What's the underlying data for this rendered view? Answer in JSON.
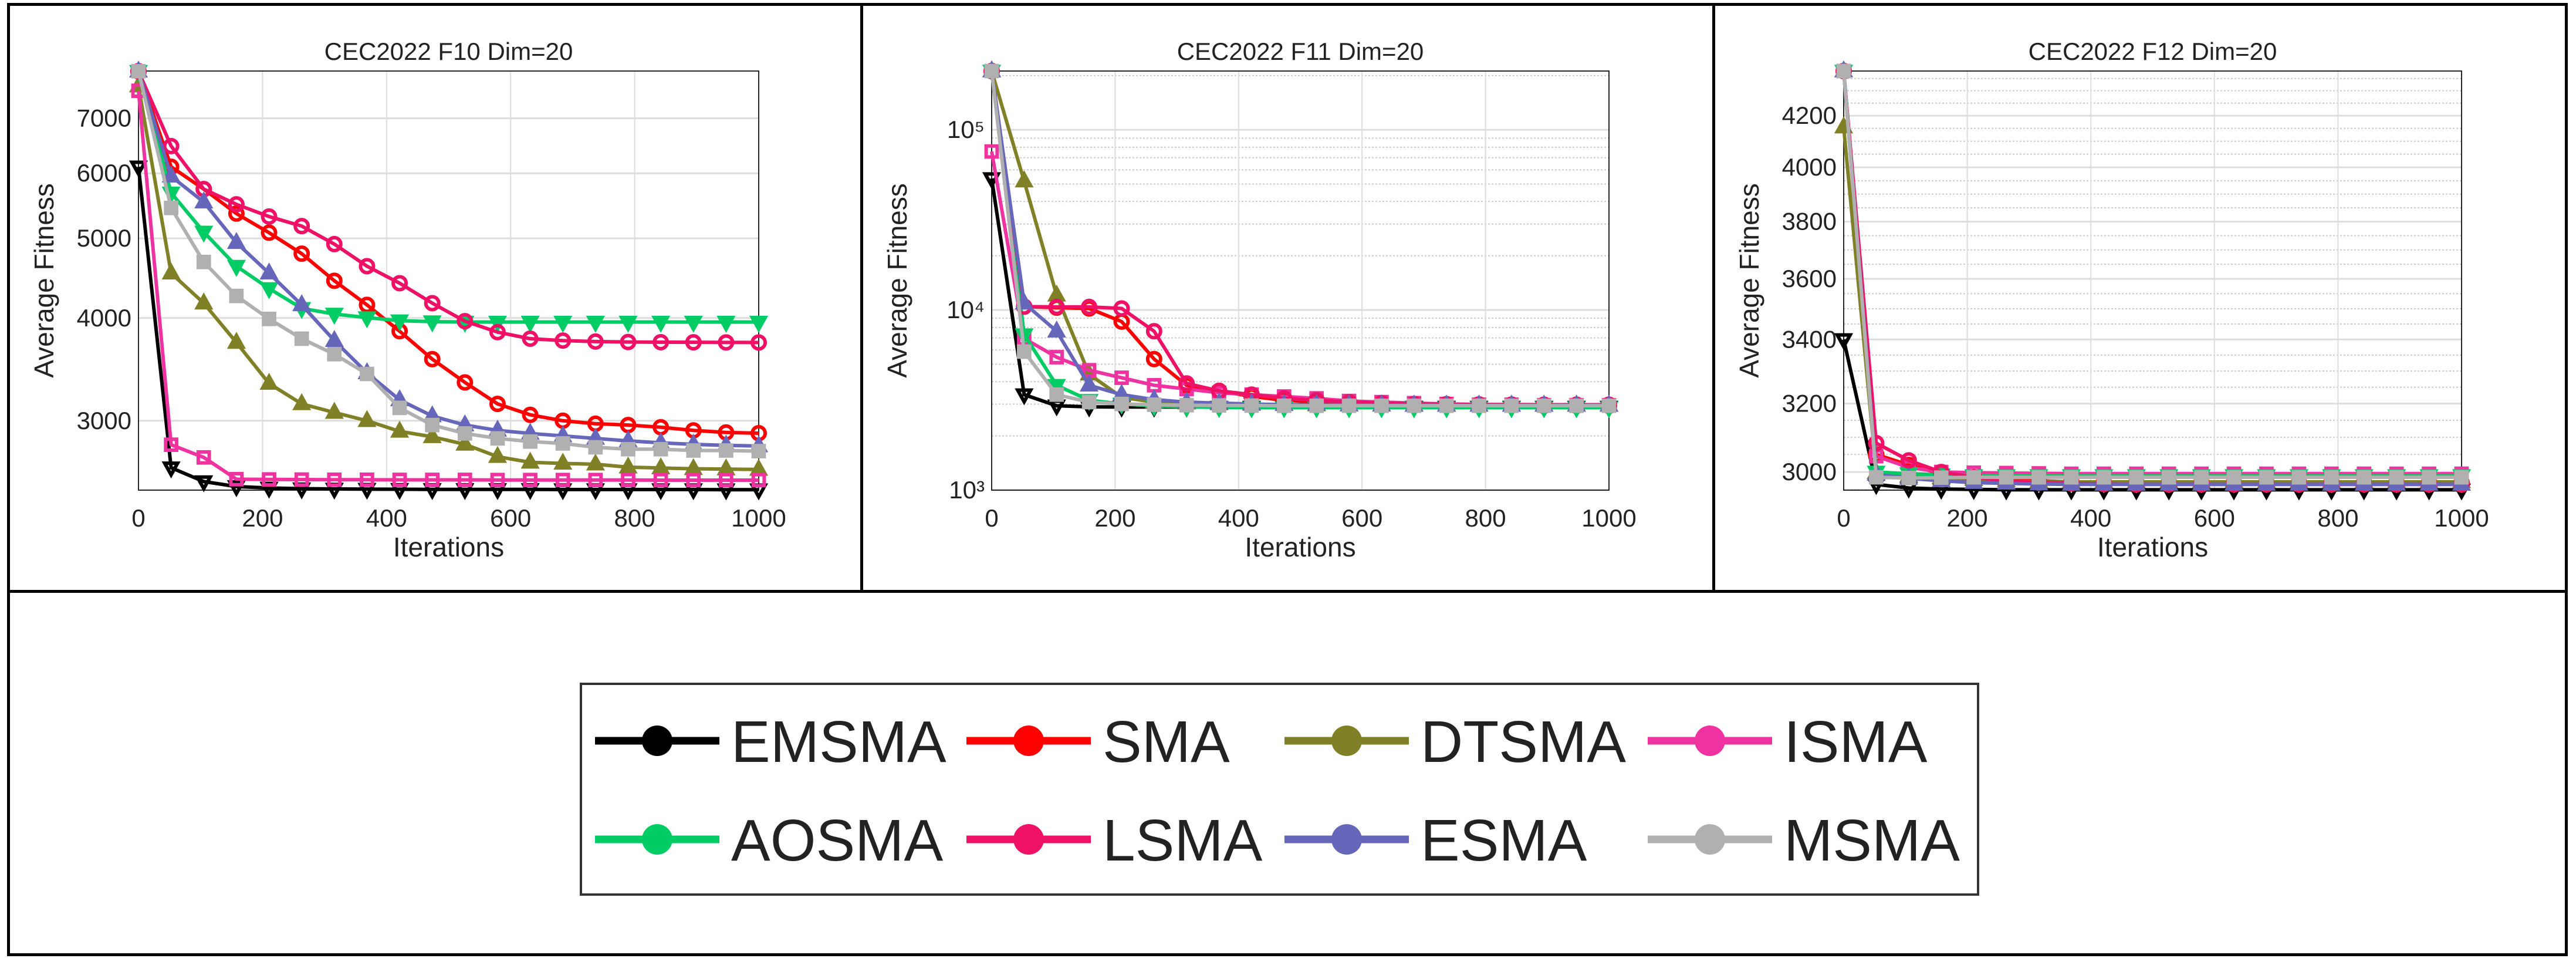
{
  "legend": [
    {
      "name": "EMSMA",
      "color": "#000000",
      "marker": "down-triangle",
      "filled": false
    },
    {
      "name": "SMA",
      "color": "#ff0000",
      "marker": "circle",
      "filled": false
    },
    {
      "name": "DTSMA",
      "color": "#808026",
      "marker": "up-triangle",
      "filled": true
    },
    {
      "name": "ISMA",
      "color": "#ee33a0",
      "marker": "square",
      "filled": false
    },
    {
      "name": "AOSMA",
      "color": "#00cc66",
      "marker": "down-triangle",
      "filled": true
    },
    {
      "name": "LSMA",
      "color": "#ee1166",
      "marker": "circle",
      "filled": false
    },
    {
      "name": "ESMA",
      "color": "#6666bb",
      "marker": "up-triangle",
      "filled": true
    },
    {
      "name": "MSMA",
      "color": "#b0b0b0",
      "marker": "square",
      "filled": true
    }
  ],
  "chart_data": [
    {
      "type": "line",
      "title": "CEC2022 F10 Dim=20",
      "xlabel": "Iterations",
      "ylabel": "Average Fitness",
      "xlim": [
        0,
        1000
      ],
      "ylim": [
        2470,
        7990
      ],
      "yscale": "log",
      "grid": true,
      "xticks": [
        0,
        200,
        400,
        600,
        800,
        1000
      ],
      "xtick_labels": [
        "0",
        "200",
        "400",
        "600",
        "800",
        "1000"
      ],
      "yticks": [
        3000,
        4000,
        5000,
        6000,
        7000
      ],
      "ytick_labels": [
        "3000",
        "4000",
        "5000",
        "6000",
        "7000"
      ],
      "series": [
        {
          "name": "EMSMA",
          "values": [
            6110,
            2630,
            2530,
            2495,
            2485,
            2480,
            2478,
            2477,
            2476,
            2475,
            2475,
            2475,
            2475,
            2474,
            2474,
            2474,
            2474,
            2474,
            2473,
            2473
          ]
        },
        {
          "name": "SMA",
          "values": [
            7985,
            6110,
            5740,
            5360,
            5080,
            4790,
            4440,
            4150,
            3855,
            3565,
            3340,
            3145,
            3050,
            3000,
            2975,
            2964,
            2946,
            2920,
            2903,
            2897
          ]
        },
        {
          "name": "DTSMA",
          "values": [
            7660,
            4535,
            4170,
            3735,
            3330,
            3145,
            3070,
            3000,
            2912,
            2868,
            2808,
            2713,
            2670,
            2662,
            2656,
            2634,
            2628,
            2622,
            2620,
            2617
          ]
        },
        {
          "name": "ISMA",
          "values": [
            7560,
            2805,
            2707,
            2547,
            2545,
            2544,
            2543,
            2543,
            2542,
            2542,
            2542,
            2541,
            2541,
            2541,
            2541,
            2541,
            2540,
            2540,
            2540,
            2540
          ]
        },
        {
          "name": "AOSMA",
          "values": [
            7985,
            5680,
            5090,
            4625,
            4345,
            4110,
            4045,
            4005,
            3970,
            3960,
            3955,
            3955,
            3955,
            3955,
            3955,
            3955,
            3955,
            3955,
            3955,
            3955
          ]
        },
        {
          "name": "LSMA",
          "values": [
            7985,
            6475,
            5740,
            5500,
            5315,
            5175,
            4920,
            4625,
            4410,
            4170,
            3965,
            3845,
            3775,
            3755,
            3745,
            3740,
            3738,
            3737,
            3736,
            3735
          ]
        },
        {
          "name": "ESMA",
          "values": [
            7985,
            5950,
            5535,
            4940,
            4535,
            4150,
            3755,
            3430,
            3180,
            3040,
            2964,
            2920,
            2895,
            2875,
            2855,
            2835,
            2820,
            2808,
            2800,
            2795
          ]
        },
        {
          "name": "MSMA",
          "values": [
            7985,
            5445,
            4680,
            4255,
            3990,
            3775,
            3615,
            3420,
            3110,
            2964,
            2895,
            2855,
            2830,
            2815,
            2785,
            2770,
            2770,
            2760,
            2760,
            2755
          ]
        }
      ]
    },
    {
      "type": "line",
      "title": "CEC2022 F11 Dim=20",
      "xlabel": "Iterations",
      "ylabel": "Average Fitness",
      "xlim": [
        0,
        1000
      ],
      "ylim": [
        1000,
        212000
      ],
      "yscale": "log",
      "grid": true,
      "xticks": [
        0,
        200,
        400,
        600,
        800,
        1000
      ],
      "xtick_labels": [
        "0",
        "200",
        "400",
        "600",
        "800",
        "1000"
      ],
      "yticks": [
        1000,
        10000,
        100000
      ],
      "ytick_labels": [
        "10³",
        "10⁴",
        "10⁵"
      ],
      "series": [
        {
          "name": "EMSMA",
          "values": [
            53700,
            3390,
            2940,
            2900,
            2894,
            2894,
            2894,
            2893,
            2893,
            2893,
            2893,
            2893,
            2893,
            2893,
            2893,
            2893,
            2893,
            2893,
            2893,
            2893
          ]
        },
        {
          "name": "SMA",
          "values": [
            212000,
            10440,
            10300,
            10200,
            8620,
            5340,
            3820,
            3556,
            3310,
            3155,
            3080,
            3040,
            3008,
            2980,
            2980,
            2960,
            2960,
            2937,
            2937,
            2937
          ]
        },
        {
          "name": "DTSMA",
          "values": [
            212000,
            51900,
            12060,
            4400,
            3275,
            3080,
            3040,
            3008,
            2990,
            2980,
            2970,
            2960,
            2955,
            2950,
            2950,
            2950,
            2950,
            2950,
            2950,
            2950
          ]
        },
        {
          "name": "ISMA",
          "values": [
            75800,
            6950,
            5470,
            4630,
            4205,
            3820,
            3640,
            3470,
            3390,
            3310,
            3230,
            3125,
            3080,
            3040,
            3008,
            2980,
            2980,
            2960,
            2960,
            2960
          ]
        },
        {
          "name": "AOSMA",
          "values": [
            212000,
            7300,
            3820,
            3155,
            3008,
            2937,
            2900,
            2880,
            2870,
            2870,
            2870,
            2870,
            2870,
            2870,
            2870,
            2870,
            2870,
            2870,
            2870,
            2870
          ]
        },
        {
          "name": "LSMA",
          "values": [
            212000,
            10440,
            10400,
            10400,
            10200,
            7620,
            3910,
            3556,
            3390,
            3230,
            3155,
            3080,
            3040,
            3008,
            3000,
            2990,
            2985,
            2980,
            2980,
            2980
          ]
        },
        {
          "name": "ESMA",
          "values": [
            212000,
            10900,
            7620,
            3820,
            3390,
            3180,
            3080,
            3040,
            3008,
            2980,
            2980,
            2970,
            2965,
            2960,
            2960,
            2960,
            2960,
            2960,
            2960,
            2960
          ]
        },
        {
          "name": "MSMA",
          "values": [
            212000,
            5870,
            3390,
            3080,
            3008,
            2980,
            2960,
            2950,
            2945,
            2940,
            2940,
            2940,
            2940,
            2940,
            2940,
            2940,
            2940,
            2940,
            2940,
            2940
          ]
        }
      ]
    },
    {
      "type": "line",
      "title": "CEC2022 F12 Dim=20",
      "xlabel": "Iterations",
      "ylabel": "Average Fitness",
      "xlim": [
        0,
        1000
      ],
      "ylim": [
        2949,
        4381
      ],
      "yscale": "log",
      "grid": true,
      "xticks": [
        0,
        200,
        400,
        600,
        800,
        1000
      ],
      "xtick_labels": [
        "0",
        "200",
        "400",
        "600",
        "800",
        "1000"
      ],
      "yticks": [
        3000,
        3200,
        3400,
        3600,
        3800,
        4000,
        4200
      ],
      "ytick_labels": [
        "3000",
        "3200",
        "3400",
        "3600",
        "3800",
        "4000",
        "4200"
      ],
      "series": [
        {
          "name": "EMSMA",
          "values": [
            3400,
            2965,
            2955,
            2952,
            2951,
            2950,
            2950,
            2950,
            2950,
            2950,
            2950,
            2950,
            2950,
            2950,
            2950,
            2950,
            2950,
            2950,
            2950,
            2950
          ]
        },
        {
          "name": "SMA",
          "values": [
            4381,
            3050,
            3020,
            2995,
            2985,
            2980,
            2975,
            2972,
            2970,
            2970,
            2970,
            2970,
            2970,
            2970,
            2970,
            2970,
            2970,
            2970,
            2970,
            2970
          ]
        },
        {
          "name": "DTSMA",
          "values": [
            4155,
            2998,
            2988,
            2982,
            2978,
            2975,
            2973,
            2972,
            2972,
            2972,
            2972,
            2972,
            2972,
            2972,
            2972,
            2972,
            2972,
            2972,
            2972,
            2972
          ]
        },
        {
          "name": "ISMA",
          "values": [
            4381,
            3045,
            3013,
            3000,
            2998,
            2997,
            2996,
            2995,
            2995,
            2995,
            2995,
            2995,
            2995,
            2995,
            2995,
            2995,
            2995,
            2995,
            2995,
            2995
          ]
        },
        {
          "name": "AOSMA",
          "values": [
            4381,
            3000,
            2995,
            2992,
            2990,
            2990,
            2990,
            2990,
            2990,
            2990,
            2990,
            2990,
            2990,
            2990,
            2990,
            2990,
            2990,
            2990,
            2990,
            2990
          ]
        },
        {
          "name": "LSMA",
          "values": [
            4381,
            3083,
            3033,
            3000,
            2985,
            2975,
            2970,
            2968,
            2966,
            2965,
            2965,
            2965,
            2965,
            2965,
            2965,
            2965,
            2965,
            2965,
            2965,
            2965
          ]
        },
        {
          "name": "ESMA",
          "values": [
            4381,
            2993,
            2982,
            2975,
            2970,
            2968,
            2966,
            2965,
            2965,
            2965,
            2965,
            2965,
            2965,
            2965,
            2965,
            2965,
            2965,
            2965,
            2965,
            2965
          ]
        },
        {
          "name": "MSMA",
          "values": [
            4381,
            2985,
            2983,
            2984,
            2985,
            2985,
            2985,
            2985,
            2985,
            2985,
            2985,
            2985,
            2985,
            2985,
            2985,
            2985,
            2985,
            2985,
            2985,
            2985
          ]
        }
      ]
    }
  ]
}
